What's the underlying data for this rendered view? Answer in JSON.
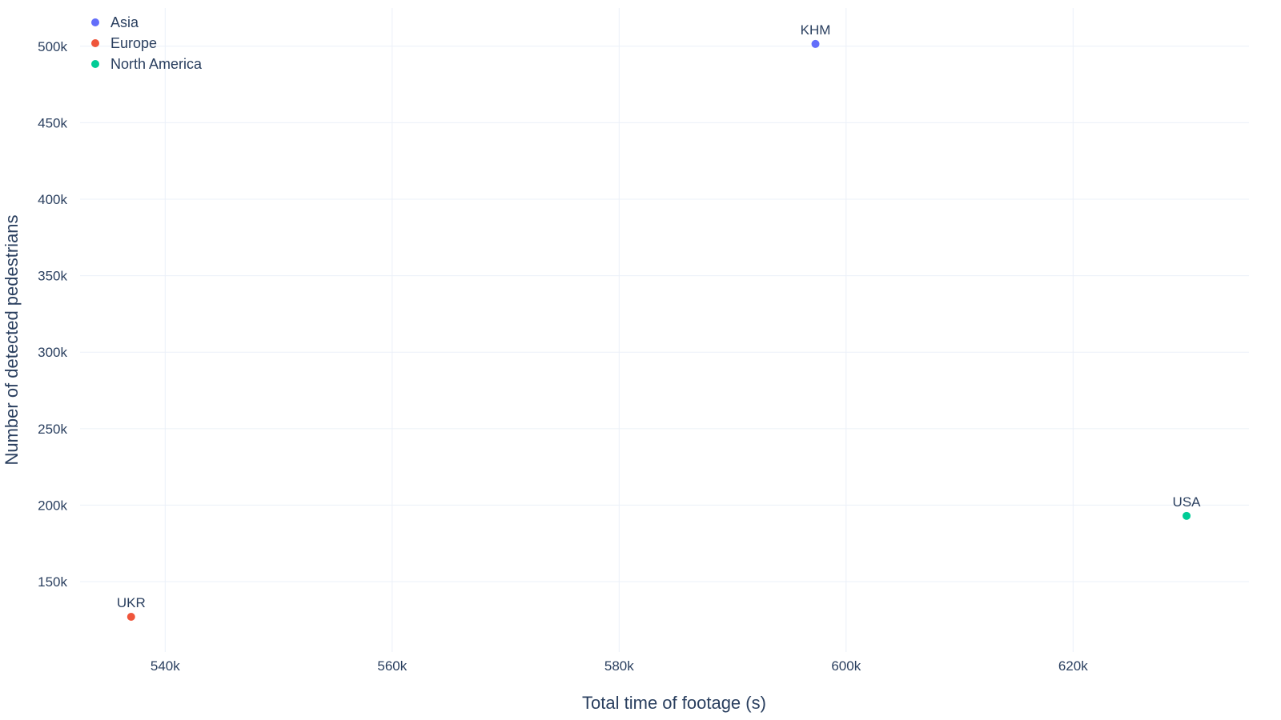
{
  "chart_data": {
    "type": "scatter",
    "title": "",
    "xlabel": "Total time of footage (s)",
    "ylabel": "Number of detected pedestrians",
    "xlim": [
      532500,
      635500
    ],
    "ylim": [
      104000,
      525000
    ],
    "x_ticks": [
      540000,
      560000,
      580000,
      600000,
      620000
    ],
    "x_tick_labels": [
      "540k",
      "560k",
      "580k",
      "600k",
      "620k"
    ],
    "y_ticks": [
      150000,
      200000,
      250000,
      300000,
      350000,
      400000,
      450000,
      500000
    ],
    "y_tick_labels": [
      "150k",
      "200k",
      "250k",
      "300k",
      "350k",
      "400k",
      "450k",
      "500k"
    ],
    "grid": true,
    "legend_position": "top-left",
    "series": [
      {
        "name": "Asia",
        "color": "#636efa",
        "points": [
          {
            "x": 597300,
            "y": 501500,
            "label": "KHM"
          }
        ]
      },
      {
        "name": "Europe",
        "color": "#ef553b",
        "points": [
          {
            "x": 537000,
            "y": 127000,
            "label": "UKR"
          }
        ]
      },
      {
        "name": "North America",
        "color": "#00cc96",
        "points": [
          {
            "x": 630000,
            "y": 193000,
            "label": "USA"
          }
        ]
      }
    ]
  }
}
